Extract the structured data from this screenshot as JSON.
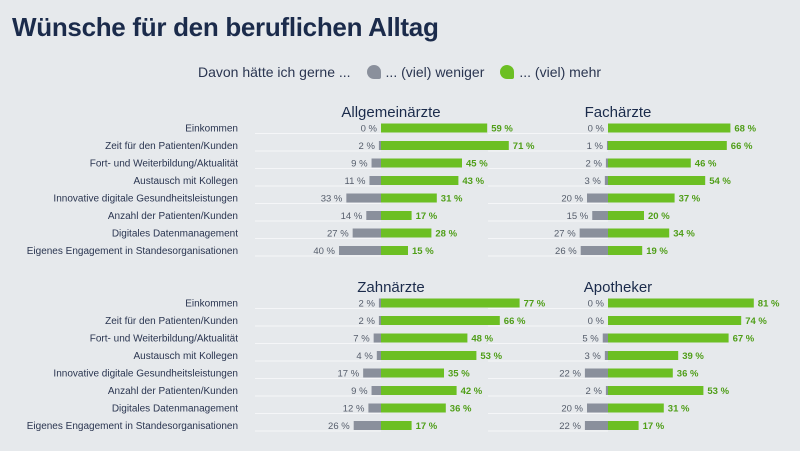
{
  "title": "Wünsche für den beruflichen Alltag",
  "legend": {
    "intro": "Davon hätte ich gerne ...",
    "less_label": "... (viel) weniger",
    "more_label": "... (viel) mehr"
  },
  "colors": {
    "less": "#8a909c",
    "more": "#6cbf23",
    "more_text": "#4f9e18"
  },
  "chart_data": {
    "type": "bar",
    "title": "Wünsche für den beruflichen Alltag",
    "unit": "%",
    "panel_groups": [
      {
        "categories": [
          "Einkommen",
          "Zeit für den Patienten/Kunden",
          "Fort- und Weiterbildung/Aktualität",
          "Austausch mit Kollegen",
          "Innovative digitale Gesundheitsleistungen",
          "Anzahl der Patienten/Kunden",
          "Digitales Datenmanagement",
          "Eigenes Engagement in Standesorganisationen"
        ],
        "panels": [
          {
            "title": "Allgemeinärzte",
            "series": [
              {
                "name": "... (viel) weniger",
                "values": [
                  0,
                  2,
                  9,
                  11,
                  33,
                  14,
                  27,
                  40
                ]
              },
              {
                "name": "... (viel) mehr",
                "values": [
                  59,
                  71,
                  45,
                  43,
                  31,
                  17,
                  28,
                  15
                ]
              }
            ]
          },
          {
            "title": "Fachärzte",
            "series": [
              {
                "name": "... (viel) weniger",
                "values": [
                  0,
                  1,
                  2,
                  3,
                  20,
                  15,
                  27,
                  26
                ]
              },
              {
                "name": "... (viel) mehr",
                "values": [
                  68,
                  66,
                  46,
                  54,
                  37,
                  20,
                  34,
                  19
                ]
              }
            ]
          }
        ]
      },
      {
        "categories": [
          "Einkommen",
          "Zeit für den Patienten/Kunden",
          "Fort- und Weiterbildung/Aktualität",
          "Austausch mit Kollegen",
          "Innovative digitale Gesundheitsleistungen",
          "Anzahl der Patienten/Kunden",
          "Digitales Datenmanagement",
          "Eigenes Engagement in Standesorganisationen"
        ],
        "panels": [
          {
            "title": "Zahnärzte",
            "series": [
              {
                "name": "... (viel) weniger",
                "values": [
                  2,
                  2,
                  7,
                  4,
                  17,
                  9,
                  12,
                  26
                ]
              },
              {
                "name": "... (viel) mehr",
                "values": [
                  77,
                  66,
                  48,
                  53,
                  35,
                  42,
                  36,
                  17
                ]
              }
            ]
          },
          {
            "title": "Apotheker",
            "series": [
              {
                "name": "... (viel) weniger",
                "values": [
                  0,
                  0,
                  5,
                  3,
                  22,
                  2,
                  20,
                  22
                ]
              },
              {
                "name": "... (viel) mehr",
                "values": [
                  81,
                  74,
                  67,
                  39,
                  36,
                  53,
                  31,
                  17
                ]
              }
            ]
          }
        ]
      }
    ]
  }
}
